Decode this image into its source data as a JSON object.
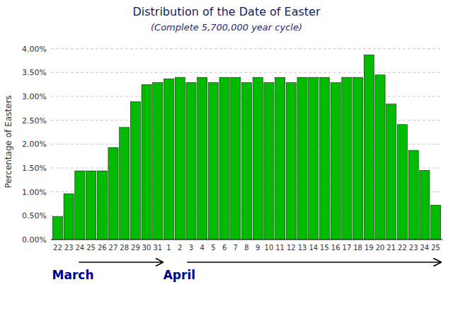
{
  "chart_data": {
    "type": "bar",
    "title": "Distribution of the Date of Easter",
    "subtitle": "(Complete 5,700,000 year cycle)",
    "ylabel": "Percentage of Easters",
    "annotations": [
      "March",
      "April"
    ],
    "categories": [
      "22",
      "23",
      "24",
      "25",
      "26",
      "27",
      "28",
      "29",
      "30",
      "31",
      "1",
      "2",
      "3",
      "4",
      "5",
      "6",
      "7",
      "8",
      "9",
      "10",
      "11",
      "12",
      "13",
      "14",
      "15",
      "16",
      "17",
      "18",
      "19",
      "20",
      "21",
      "22",
      "23",
      "24",
      "25"
    ],
    "values": [
      0.0048,
      0.0096,
      0.0144,
      0.0144,
      0.0144,
      0.0193,
      0.0235,
      0.0289,
      0.0325,
      0.0329,
      0.0337,
      0.034,
      0.0329,
      0.034,
      0.0329,
      0.034,
      0.034,
      0.0329,
      0.034,
      0.0329,
      0.034,
      0.0329,
      0.034,
      0.034,
      0.034,
      0.0329,
      0.034,
      0.034,
      0.0387,
      0.0345,
      0.0284,
      0.0241,
      0.0187,
      0.0145,
      0.0072
    ],
    "color": "#00BB00",
    "ylim": [
      0,
      0.041
    ],
    "yticks": [
      {
        "value": 0.0,
        "label": "0.00%"
      },
      {
        "value": 0.005,
        "label": "0.50%"
      },
      {
        "value": 0.01,
        "label": "1.00%"
      },
      {
        "value": 0.015,
        "label": "1.50%"
      },
      {
        "value": 0.02,
        "label": "2.00%"
      },
      {
        "value": 0.025,
        "label": "2.50%"
      },
      {
        "value": 0.03,
        "label": "3.00%"
      },
      {
        "value": 0.035,
        "label": "3.50%"
      },
      {
        "value": 0.04,
        "label": "4.00%"
      }
    ],
    "grid": true
  }
}
